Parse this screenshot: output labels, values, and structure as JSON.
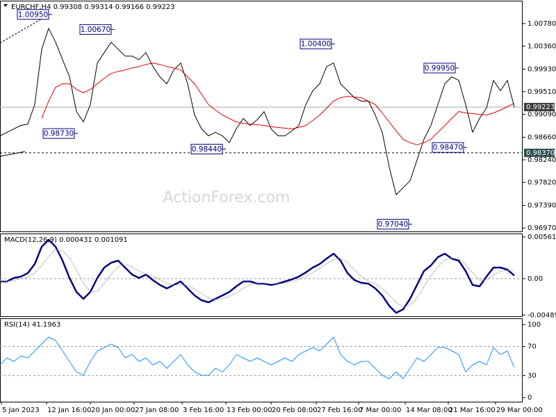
{
  "chart_data": [
    {
      "type": "line",
      "title": "EURCHF,H4  0.99308 0.99314 0.99166 0.99223",
      "watermark": "ActionForex.com",
      "x": [
        0,
        5,
        10,
        15,
        20,
        25,
        30,
        35,
        40,
        45,
        50,
        55,
        60,
        65,
        70,
        75,
        80,
        85,
        90,
        95,
        100,
        105,
        110,
        115,
        120,
        125,
        130,
        135,
        140,
        145,
        150,
        155,
        160,
        165,
        170,
        175,
        180,
        185,
        190,
        195,
        200,
        205,
        210,
        215,
        220,
        225,
        230,
        235,
        240,
        245,
        250,
        255,
        260,
        265,
        270,
        275,
        280,
        285,
        290,
        295,
        300,
        305,
        310,
        315,
        320,
        325,
        330,
        335,
        340,
        345,
        350,
        355,
        360,
        365,
        370
      ],
      "xlim": [
        0,
        376
      ],
      "ylim": [
        0.96905,
        1.01206
      ],
      "yticks": [
        {
          "value": 1.0078,
          "label": "1.00780"
        },
        {
          "value": 1.0036,
          "label": "1.00360"
        },
        {
          "value": 0.9993,
          "label": "0.99930"
        },
        {
          "value": 0.9951,
          "label": "0.99510"
        },
        {
          "value": 0.9909,
          "label": "0.99090"
        },
        {
          "value": 0.9866,
          "label": "0.98660"
        },
        {
          "value": 0.9824,
          "label": "0.98240"
        },
        {
          "value": 0.9782,
          "label": "0.97820"
        },
        {
          "value": 0.9739,
          "label": "0.97390"
        },
        {
          "value": 0.9697,
          "label": "0.96970"
        }
      ],
      "series": [
        {
          "color": "#000000",
          "values": [
            0.98688,
            0.98752,
            0.98817,
            0.98881,
            0.98907,
            0.99269,
            1.00302,
            1.0069,
            1.00431,
            1.00108,
            0.99786,
            0.9914,
            0.98946,
            0.99269,
            1.00044,
            1.00238,
            1.00431,
            1.00302,
            1.00173,
            1.00173,
            1.00108,
            1.00238,
            0.99979,
            0.99786,
            0.99656,
            0.99915,
            1.00044,
            0.99656,
            0.99075,
            0.98817,
            0.98688,
            0.98752,
            0.98688,
            0.98559,
            0.98817,
            0.99011,
            0.98881,
            0.98985,
            0.9914,
            0.98817,
            0.98688,
            0.98688,
            0.98778,
            0.98881,
            0.99269,
            0.99527,
            0.99656,
            0.99979,
            1.00044,
            0.99656,
            0.99527,
            0.99398,
            0.99334,
            0.99334,
            0.99075,
            0.98752,
            0.98107,
            0.9759,
            0.97719,
            0.97848,
            0.98236,
            0.98623,
            0.98881,
            0.99269,
            0.99656,
            0.99786,
            0.99721,
            0.99269,
            0.98752,
            0.99011,
            0.99204,
            0.99721,
            0.99527,
            0.99721,
            0.99223
          ]
        },
        {
          "color": "#e00000",
          "values": [
            null,
            null,
            null,
            null,
            null,
            null,
            0.99011,
            0.99334,
            0.99592,
            0.99656,
            0.99656,
            0.99553,
            0.99489,
            0.99553,
            0.99656,
            0.9976,
            0.9985,
            0.99889,
            0.99915,
            0.99953,
            0.99979,
            1.00018,
            1.00044,
            1.00018,
            0.99979,
            0.99953,
            0.99915,
            0.99786,
            0.99656,
            0.99463,
            0.99269,
            0.99166,
            0.99075,
            0.99011,
            0.98946,
            0.9892,
            0.98907,
            0.98894,
            0.98881,
            0.98856,
            0.98843,
            0.9883,
            0.98817,
            0.98843,
            0.98881,
            0.98972,
            0.99075,
            0.99204,
            0.99334,
            0.99398,
            0.99424,
            0.99411,
            0.99398,
            0.99334,
            0.99269,
            0.99114,
            0.98946,
            0.98778,
            0.98623,
            0.98559,
            0.9852,
            0.98559,
            0.98623,
            0.98752,
            0.98881,
            0.99011,
            0.9914,
            0.99114,
            0.99101,
            0.99088,
            0.99075,
            0.99114,
            0.99166,
            0.9923,
            0.99295
          ]
        }
      ],
      "levels": [
        {
          "value": 0.99223,
          "label": "0.99223",
          "style": "solid"
        },
        {
          "value": 0.9837,
          "label": "0.98370",
          "style": "dashed"
        }
      ],
      "annotations": [
        {
          "label": "1.00950",
          "value": 1.0095,
          "x": 37.5
        },
        {
          "label": "1.00670",
          "value": 1.0067,
          "x": 82.5
        },
        {
          "label": "0.98730",
          "value": 0.9873,
          "x": 56
        },
        {
          "label": "0.98440",
          "value": 0.9844,
          "x": 162.5
        },
        {
          "label": "1.00400",
          "value": 1.004,
          "x": 241
        },
        {
          "label": "0.97040",
          "value": 0.9704,
          "x": 296.5
        },
        {
          "label": "0.99950",
          "value": 0.9995,
          "x": 330
        },
        {
          "label": "0.98470",
          "value": 0.9847,
          "x": 336
        }
      ]
    },
    {
      "type": "line",
      "title": "MACD(12,26,9) 0.000431 0.001091",
      "x": [
        0,
        5,
        10,
        15,
        20,
        25,
        30,
        35,
        40,
        45,
        50,
        55,
        60,
        65,
        70,
        75,
        80,
        85,
        90,
        95,
        100,
        105,
        110,
        115,
        120,
        125,
        130,
        135,
        140,
        145,
        150,
        155,
        160,
        165,
        170,
        175,
        180,
        185,
        190,
        195,
        200,
        205,
        210,
        215,
        220,
        225,
        230,
        235,
        240,
        245,
        250,
        255,
        260,
        265,
        270,
        275,
        280,
        285,
        290,
        295,
        300,
        305,
        310,
        315,
        320,
        325,
        330,
        335,
        340,
        345,
        350,
        355,
        360,
        365,
        370
      ],
      "xlim": [
        0,
        376
      ],
      "ylim": [
        -0.00505,
        0.00608
      ],
      "yticks": [
        0.005615,
        {
          "value": 0,
          "label": "0.00"
        },
        -0.004892
      ],
      "levels": [
        0
      ],
      "series": [
        {
          "color": "#000080",
          "values": [
            -0.00037,
            -0.00037,
            9e-05,
            0.00028,
            0.00075,
            0.00197,
            0.0043,
            0.00524,
            0.0043,
            0.00243,
            9e-05,
            -0.00178,
            -0.00271,
            -0.00178,
            9e-05,
            0.0015,
            0.00215,
            0.00243,
            0.0015,
            0.00056,
            9e-05,
            0.00056,
            -0.00019,
            -0.00084,
            -0.00131,
            -0.00084,
            -0.00037,
            -0.00131,
            -0.00225,
            -0.0029,
            -0.00318,
            -0.00271,
            -0.00225,
            -0.00178,
            -0.00103,
            -0.00037,
            -0.00037,
            -0.00066,
            -0.00066,
            -0.00084,
            -0.00066,
            -0.00037,
            -9e-05,
            0.00028,
            0.00084,
            0.0015,
            0.00197,
            0.00271,
            0.00337,
            0.00243,
            0.00075,
            -0.00019,
            -0.00056,
            -0.00066,
            -0.00131,
            -0.00225,
            -0.00365,
            -0.00459,
            -0.00412,
            -0.00271,
            -0.00084,
            0.00103,
            0.00178,
            0.0029,
            0.00337,
            0.00271,
            0.00243,
            0.00103,
            -0.00084,
            -0.00103,
            0.00028,
            0.0015,
            0.0015,
            0.00122,
            0.000431
          ]
        },
        {
          "color": "#a0a0a0",
          "values": [
            -0.0003,
            -0.00035,
            -0.00025,
            -5e-05,
            0.0002,
            0.0008,
            0.0018,
            0.003,
            0.0039,
            0.0038,
            0.0028,
            0.0012,
            -0.0006,
            -0.0018,
            -0.0017,
            -0.0006,
            0.0006,
            0.0016,
            0.002,
            0.0016,
            0.001,
            0.0006,
            0.0003,
            -0.0001,
            -0.0006,
            -0.0009,
            -0.0008,
            -0.0009,
            -0.0014,
            -0.002,
            -0.0026,
            -0.0028,
            -0.0027,
            -0.0024,
            -0.0019,
            -0.0013,
            -0.0008,
            -0.0006,
            -0.0006,
            -0.0007,
            -0.0007,
            -0.0006,
            -0.0004,
            -0.0001,
            0.0003,
            0.0008,
            0.0014,
            0.002,
            0.0026,
            0.0028,
            0.0022,
            0.0012,
            0.0003,
            -0.0003,
            -0.0007,
            -0.0013,
            -0.0022,
            -0.0032,
            -0.0038,
            -0.0036,
            -0.0026,
            -0.0011,
            0.0004,
            0.0016,
            0.0025,
            0.0028,
            0.0026,
            0.0019,
            0.0008,
            -0.0002,
            -0.0002,
            0.0005,
            0.001,
            0.0011,
            0.001091
          ]
        }
      ]
    },
    {
      "type": "line",
      "title": "RSI(14) 41.1963",
      "x": [
        0,
        5,
        10,
        15,
        20,
        25,
        30,
        35,
        40,
        45,
        50,
        55,
        60,
        65,
        70,
        75,
        80,
        85,
        90,
        95,
        100,
        105,
        110,
        115,
        120,
        125,
        130,
        135,
        140,
        145,
        150,
        155,
        160,
        165,
        170,
        175,
        180,
        185,
        190,
        195,
        200,
        205,
        210,
        215,
        220,
        225,
        230,
        235,
        240,
        245,
        250,
        255,
        260,
        265,
        270,
        275,
        280,
        285,
        290,
        295,
        300,
        305,
        310,
        315,
        320,
        325,
        330,
        335,
        340,
        345,
        350,
        355,
        360,
        365,
        370
      ],
      "xlim": [
        0,
        376
      ],
      "ylim": [
        -5.7,
        108.6
      ],
      "yticks": [
        100,
        70,
        30,
        0
      ],
      "levels": [
        70,
        30
      ],
      "xticks": [
        {
          "value": 1,
          "label": "5 Jan 2023"
        },
        {
          "value": 33.5,
          "label": "12 Jan 16:00"
        },
        {
          "value": 65,
          "label": "20 Jan 00:00"
        },
        {
          "value": 96.5,
          "label": "27 Jan 08:00"
        },
        {
          "value": 131,
          "label": "3 Feb 16:00"
        },
        {
          "value": 162.5,
          "label": "13 Feb 00:00"
        },
        {
          "value": 195,
          "label": "20 Feb 08:00"
        },
        {
          "value": 227.5,
          "label": "27 Feb 16:00"
        },
        {
          "value": 258,
          "label": "7 Mar 00:00"
        },
        {
          "value": 291.5,
          "label": "14 Mar 08:00"
        },
        {
          "value": 322.5,
          "label": "21 Mar 16:00"
        },
        {
          "value": 356.5,
          "label": "29 Mar 00:00"
        }
      ],
      "series": [
        {
          "color": "#1e90ff",
          "values": [
            44.8,
            54.3,
            49.5,
            57.1,
            54.3,
            63.8,
            73.3,
            82.9,
            78.1,
            63.8,
            49.5,
            35.2,
            30.5,
            49.5,
            63.8,
            68.6,
            73.3,
            68.6,
            54.3,
            59.0,
            49.5,
            54.3,
            44.8,
            49.5,
            40.0,
            49.5,
            59.0,
            44.8,
            35.2,
            30.5,
            30.5,
            40.0,
            35.2,
            44.8,
            59.0,
            54.3,
            49.5,
            54.3,
            49.5,
            44.8,
            49.5,
            54.3,
            49.5,
            59.0,
            63.8,
            68.6,
            63.8,
            73.3,
            82.9,
            59.0,
            49.5,
            44.8,
            49.5,
            49.5,
            40.0,
            30.5,
            25.7,
            35.2,
            25.7,
            40.0,
            54.3,
            49.5,
            59.0,
            68.6,
            68.6,
            63.8,
            59.0,
            35.2,
            44.8,
            49.5,
            44.8,
            68.6,
            59.0,
            63.8,
            41.1963
          ]
        }
      ]
    }
  ]
}
